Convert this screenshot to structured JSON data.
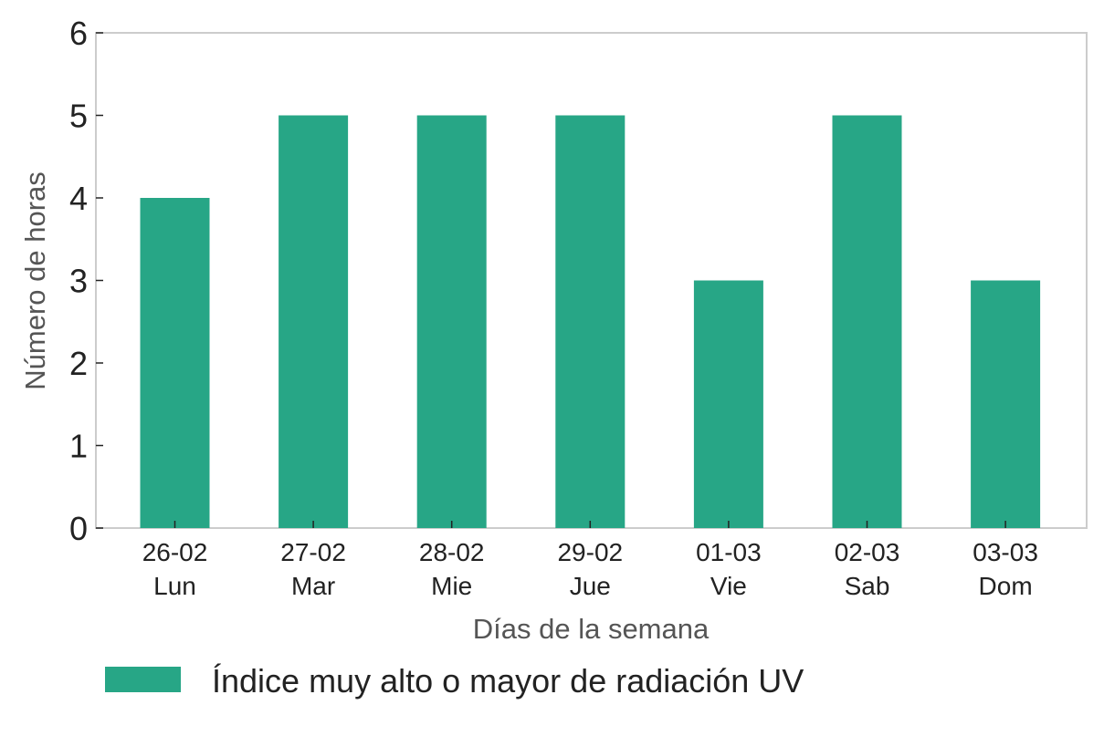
{
  "chart_data": {
    "type": "bar",
    "categories": [
      [
        "26-02",
        "Lun"
      ],
      [
        "27-02",
        "Mar"
      ],
      [
        "28-02",
        "Mie"
      ],
      [
        "29-02",
        "Jue"
      ],
      [
        "01-03",
        "Vie"
      ],
      [
        "02-03",
        "Sab"
      ],
      [
        "03-03",
        "Dom"
      ]
    ],
    "series": [
      {
        "name": "Índice muy alto o mayor de radiación UV",
        "values": [
          4,
          5,
          5,
          5,
          3,
          5,
          3
        ],
        "color": "#27a686"
      }
    ],
    "xlabel": "Días de la semana",
    "ylabel": "Número de horas",
    "ylim": [
      0,
      6
    ],
    "yticks": [
      0,
      1,
      2,
      3,
      4,
      5,
      6
    ],
    "grid": false,
    "legend_position": "bottom"
  }
}
